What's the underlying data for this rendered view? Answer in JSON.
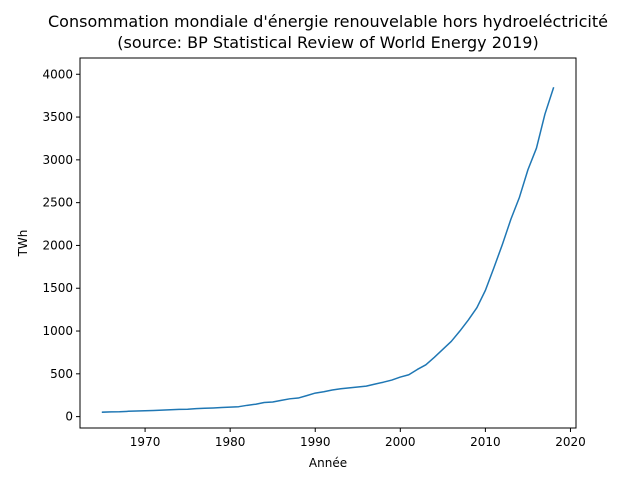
{
  "chart_data": {
    "type": "line",
    "title": "Consommation mondiale d'énergie renouvelable hors hydroeléctricité",
    "subtitle": "(source: BP Statistical Review of World Energy 2019)",
    "xlabel": "Année",
    "ylabel": "TWh",
    "xlim": [
      1962.35,
      2020.65
    ],
    "ylim": [
      -133,
      4190
    ],
    "xticks": [
      1970,
      1980,
      1990,
      2000,
      2010,
      2020
    ],
    "yticks": [
      0,
      500,
      1000,
      1500,
      2000,
      2500,
      3000,
      3500,
      4000
    ],
    "grid": false,
    "series": [
      {
        "color": "#1f77b4",
        "x": [
          1965,
          1966,
          1967,
          1968,
          1969,
          1970,
          1971,
          1972,
          1973,
          1974,
          1975,
          1976,
          1977,
          1978,
          1979,
          1980,
          1981,
          1982,
          1983,
          1984,
          1985,
          1986,
          1987,
          1988,
          1989,
          1990,
          1991,
          1992,
          1993,
          1994,
          1995,
          1996,
          1997,
          1998,
          1999,
          2000,
          2001,
          2002,
          2003,
          2004,
          2005,
          2006,
          2007,
          2008,
          2009,
          2010,
          2011,
          2012,
          2013,
          2014,
          2015,
          2016,
          2017,
          2018
        ],
        "y": [
          52,
          55,
          57,
          62,
          65,
          68,
          71,
          76,
          80,
          84,
          86,
          93,
          97,
          101,
          106,
          111,
          116,
          132,
          145,
          165,
          171,
          190,
          208,
          217,
          245,
          275,
          291,
          311,
          325,
          336,
          346,
          356,
          380,
          402,
          427,
          462,
          489,
          551,
          605,
          693,
          786,
          880,
          1000,
          1130,
          1273,
          1475,
          1739,
          2013,
          2307,
          2562,
          2884,
          3136,
          3535,
          3840
        ]
      }
    ]
  }
}
